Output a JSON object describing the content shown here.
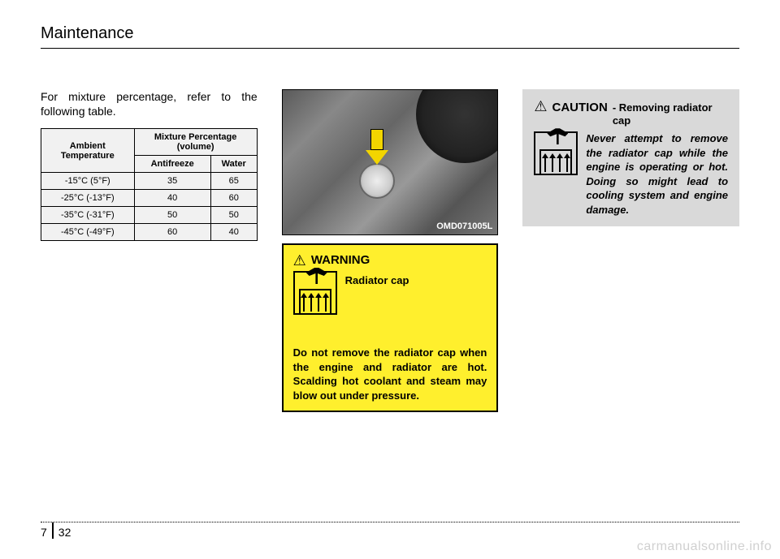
{
  "header": {
    "title": "Maintenance"
  },
  "intro": "For mixture percentage, refer to the following table.",
  "table": {
    "header_left": "Ambient Temperature",
    "header_right": "Mixture Percentage (volume)",
    "sub_left": "Antifreeze",
    "sub_right": "Water",
    "rows": [
      {
        "temp": "-15°C (5°F)",
        "anti": "35",
        "water": "65"
      },
      {
        "temp": "-25°C (-13°F)",
        "anti": "40",
        "water": "60"
      },
      {
        "temp": "-35°C (-31°F)",
        "anti": "50",
        "water": "50"
      },
      {
        "temp": "-45°C (-49°F)",
        "anti": "60",
        "water": "40"
      }
    ]
  },
  "photo": {
    "code": "OMD071005L"
  },
  "warning": {
    "label": "WARNING",
    "subtitle": "Radiator cap",
    "body": "Do not remove the radiator cap when the engine and radiator are hot. Scalding hot coolant and steam may blow out under pressure."
  },
  "caution": {
    "label": "CAUTION",
    "subtitle": "- Removing radiator cap",
    "body": "Never attempt to remove the radiator cap while the engine is operating or hot. Doing so might lead to cooling system and engine damage."
  },
  "footer": {
    "section": "7",
    "page": "32"
  },
  "watermark": "carmanualsonline.info",
  "colors": {
    "warning_bg": "#ffef2d",
    "caution_bg": "#d9d9d9",
    "page_bg": "#ffffff",
    "text": "#000000"
  }
}
